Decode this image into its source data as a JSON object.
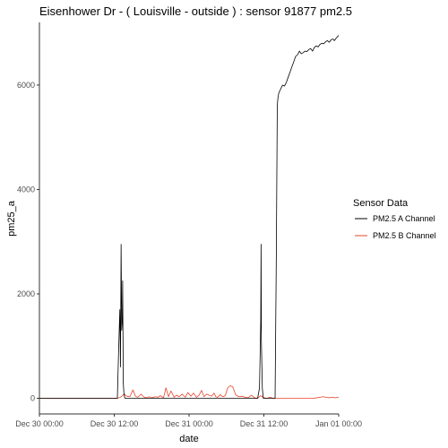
{
  "chart_data": {
    "type": "line",
    "title": "Eisenhower Dr - ( Louisville - outside ) : sensor 91877 pm2.5",
    "xlabel": "date",
    "ylabel": "pm25_a",
    "x_unit": "hours since Dec 30 00:00",
    "xlim": [
      0,
      48
    ],
    "ylim": [
      -300,
      7200
    ],
    "x_ticks": [
      {
        "value": 0,
        "label": "Dec 30 00:00"
      },
      {
        "value": 12,
        "label": "Dec 30 12:00"
      },
      {
        "value": 24,
        "label": "Dec 31 00:00"
      },
      {
        "value": 36,
        "label": "Dec 31 12:00"
      },
      {
        "value": 48,
        "label": "Jan 01 00:00"
      }
    ],
    "y_ticks": [
      0,
      2000,
      4000,
      6000
    ],
    "grid": false,
    "legend": {
      "title": "Sensor Data",
      "placement": "right",
      "entries": [
        {
          "name": "PM2.5 A Channel",
          "color": "#000000"
        },
        {
          "name": "PM2.5 B Channel",
          "color": "#e8442c"
        }
      ]
    },
    "series": [
      {
        "name": "PM2.5 A Channel",
        "color": "#000000",
        "x": [
          0,
          12.5,
          12.7,
          12.9,
          13.0,
          13.1,
          13.2,
          13.3,
          13.35,
          13.45,
          13.55,
          13.7,
          13.85,
          14.0,
          20,
          25,
          30,
          35,
          35.3,
          35.5,
          35.55,
          35.6,
          35.75,
          35.9,
          36.0,
          36.5,
          37.5,
          37.8,
          38.0,
          38.15,
          38.25,
          38.4,
          38.6,
          38.8,
          39.0,
          39.3,
          39.6,
          39.9,
          40.2,
          40.5,
          40.8,
          41.1,
          41.4,
          41.7,
          42.0,
          42.3,
          42.6,
          42.9,
          43.2,
          43.5,
          43.8,
          44.1,
          44.4,
          44.7,
          45.0,
          45.3,
          45.6,
          45.9,
          46.2,
          46.5,
          46.8,
          47.1,
          47.3,
          47.6,
          48.0
        ],
        "y": [
          0,
          0,
          900,
          1700,
          600,
          2950,
          1300,
          1500,
          2250,
          300,
          100,
          0,
          0,
          0,
          0,
          0,
          0,
          0,
          200,
          1500,
          2950,
          1100,
          200,
          0,
          0,
          0,
          0,
          0,
          2800,
          5600,
          5750,
          5850,
          5900,
          5950,
          6000,
          5980,
          6050,
          6150,
          6250,
          6350,
          6450,
          6550,
          6580,
          6650,
          6600,
          6620,
          6650,
          6640,
          6680,
          6700,
          6650,
          6720,
          6750,
          6730,
          6780,
          6800,
          6790,
          6830,
          6850,
          6820,
          6870,
          6880,
          6850,
          6900,
          6950
        ]
      },
      {
        "name": "PM2.5 B Channel",
        "color": "#e8442c",
        "x": [
          0,
          12.5,
          13.0,
          13.3,
          13.6,
          14.0,
          14.5,
          15.0,
          15.4,
          15.8,
          16.3,
          16.8,
          17.2,
          17.6,
          18.0,
          18.6,
          19.0,
          19.4,
          19.9,
          20.3,
          20.7,
          21.1,
          21.6,
          22.0,
          22.4,
          22.9,
          23.4,
          23.8,
          24.3,
          24.7,
          25.2,
          25.6,
          26.0,
          26.4,
          26.8,
          27.2,
          27.6,
          28.0,
          28.3,
          28.6,
          29.0,
          29.4,
          29.8,
          30.2,
          30.6,
          31.0,
          31.5,
          32.0,
          32.5,
          33.0,
          33.5,
          34.0,
          34.5,
          35.0,
          35.5,
          36.0,
          36.5,
          37.0,
          37.5,
          38.0,
          39.0,
          40.0,
          41.0,
          42.0,
          43.0,
          44.0,
          44.5,
          45.0,
          45.5,
          46.0,
          46.5,
          47.0,
          47.5,
          48.0
        ],
        "y": [
          0,
          0,
          20,
          50,
          80,
          40,
          30,
          160,
          40,
          20,
          80,
          20,
          10,
          30,
          10,
          30,
          20,
          50,
          10,
          200,
          30,
          140,
          20,
          60,
          30,
          80,
          20,
          110,
          40,
          100,
          20,
          60,
          150,
          30,
          80,
          60,
          40,
          100,
          30,
          20,
          70,
          30,
          50,
          200,
          240,
          220,
          60,
          30,
          40,
          20,
          10,
          60,
          10,
          0,
          50,
          10,
          0,
          20,
          0,
          0,
          0,
          0,
          0,
          0,
          0,
          0,
          10,
          20,
          30,
          20,
          10,
          20,
          10,
          20
        ]
      }
    ]
  }
}
